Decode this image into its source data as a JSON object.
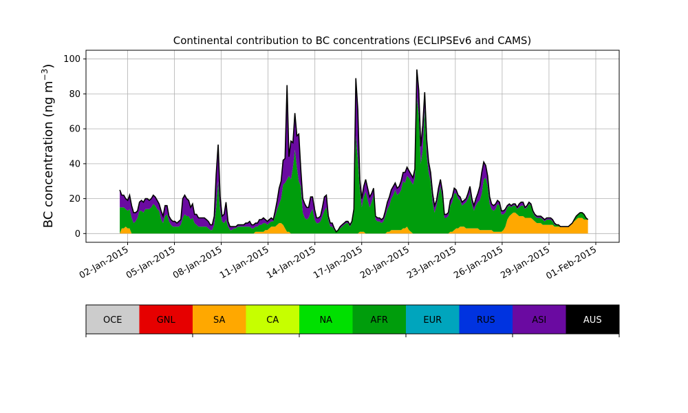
{
  "chart_data": {
    "type": "area",
    "title": "Continental contribution to BC concentrations (ECLIPSEv6 and CAMS)",
    "xlabel": "",
    "ylabel_main": "BC concentration (ng m",
    "ylabel_sup": "−3",
    "ylabel_close": ")",
    "x_start": "2015-01-01T12:00",
    "x_end": "2015-01-31T12:00",
    "xlim_days": [
      "2014-12-30T08:00",
      "2015-02-02T12:00"
    ],
    "ylim": [
      -5,
      105
    ],
    "yticks": [
      0,
      20,
      40,
      60,
      80,
      100
    ],
    "xticks": [
      "02-Jan-2015",
      "05-Jan-2015",
      "08-Jan-2015",
      "11-Jan-2015",
      "14-Jan-2015",
      "17-Jan-2015",
      "20-Jan-2015",
      "23-Jan-2015",
      "26-Jan-2015",
      "29-Jan-2015",
      "01-Feb-2015"
    ],
    "grid": true,
    "series": [
      {
        "name": "SA",
        "color": "#ffa800",
        "values": [
          0,
          3,
          3,
          4,
          3,
          3,
          0,
          0,
          0,
          0,
          0,
          0,
          0,
          0,
          0,
          0,
          0,
          0,
          0,
          0,
          0,
          0,
          0,
          0,
          0,
          0,
          0,
          0,
          0,
          0,
          0,
          0,
          0,
          0,
          0,
          0,
          0,
          0,
          0,
          0,
          0,
          0,
          0,
          0,
          0,
          0,
          0,
          0,
          0,
          0,
          0,
          0,
          0,
          0,
          0,
          0,
          0,
          0,
          0,
          0,
          0,
          0,
          0,
          0,
          0,
          0,
          0,
          0,
          0,
          1,
          1,
          1,
          1,
          1,
          2,
          2,
          3,
          4,
          4,
          4,
          5,
          6,
          6,
          5,
          3,
          1,
          1,
          0,
          0,
          0,
          0,
          0,
          0,
          0,
          0,
          0,
          0,
          0,
          0,
          0,
          0,
          0,
          0,
          0,
          0,
          0,
          0,
          0,
          0,
          0,
          0,
          0,
          0,
          0,
          0,
          0,
          0,
          0,
          0,
          0,
          0,
          0,
          1,
          1,
          1,
          0,
          0,
          0,
          0,
          0,
          0,
          0,
          0,
          0,
          0,
          0,
          1,
          1,
          2,
          2,
          2,
          2,
          2,
          2,
          3,
          3,
          4,
          2,
          1,
          0,
          0,
          0,
          0,
          0,
          0,
          0,
          0,
          0,
          0,
          0,
          0,
          0,
          0,
          0,
          0,
          0,
          0,
          0,
          1,
          1,
          2,
          3,
          3,
          4,
          4,
          4,
          3,
          3,
          3,
          3,
          3,
          3,
          3,
          2,
          2,
          2,
          2,
          2,
          2,
          2,
          1,
          1,
          1,
          1,
          1,
          2,
          4,
          8,
          10,
          11,
          12,
          12,
          11,
          10,
          10,
          10,
          9,
          9,
          9,
          9,
          8,
          7,
          6,
          6,
          6,
          5,
          5,
          5,
          5,
          5,
          5,
          4,
          4,
          4,
          4,
          4,
          4,
          4,
          4,
          5,
          6,
          7,
          8,
          9,
          9,
          9,
          8,
          8,
          8
        ]
      },
      {
        "name": "AFR",
        "color": "#009d0c",
        "values": [
          15,
          12,
          12,
          10,
          10,
          11,
          9,
          6,
          7,
          9,
          13,
          13,
          12,
          14,
          14,
          14,
          15,
          17,
          16,
          14,
          13,
          8,
          6,
          10,
          11,
          7,
          5,
          4,
          4,
          4,
          4,
          5,
          9,
          11,
          10,
          10,
          8,
          9,
          6,
          5,
          4,
          4,
          4,
          4,
          4,
          3,
          2,
          2,
          5,
          15,
          30,
          13,
          7,
          6,
          8,
          4,
          2,
          2,
          3,
          3,
          4,
          4,
          4,
          4,
          4,
          4,
          4,
          3,
          3,
          3,
          3,
          4,
          4,
          5,
          4,
          3,
          3,
          3,
          3,
          6,
          9,
          11,
          14,
          23,
          26,
          30,
          32,
          31,
          38,
          48,
          38,
          30,
          27,
          12,
          9,
          8,
          9,
          12,
          14,
          8,
          6,
          6,
          7,
          10,
          13,
          15,
          8,
          4,
          4,
          2,
          1,
          2,
          3,
          4,
          5,
          6,
          6,
          4,
          6,
          12,
          56,
          43,
          25,
          14,
          20,
          24,
          19,
          15,
          18,
          22,
          8,
          7,
          7,
          6,
          7,
          10,
          13,
          15,
          18,
          20,
          23,
          20,
          21,
          23,
          27,
          26,
          29,
          30,
          29,
          28,
          32,
          78,
          68,
          40,
          48,
          72,
          45,
          35,
          30,
          18,
          12,
          16,
          22,
          27,
          20,
          9,
          9,
          10,
          15,
          17,
          21,
          20,
          17,
          15,
          12,
          13,
          15,
          17,
          20,
          14,
          10,
          13,
          15,
          17,
          21,
          29,
          30,
          25,
          15,
          12,
          12,
          13,
          16,
          15,
          10,
          9,
          8,
          7,
          6,
          4,
          4,
          4,
          3,
          5,
          6,
          6,
          5,
          6,
          8,
          7,
          4,
          3,
          3,
          3,
          3,
          3,
          2,
          3,
          3,
          3,
          2,
          1,
          1,
          1,
          0,
          0,
          0,
          0,
          0,
          0,
          0,
          1,
          2,
          2,
          3,
          3,
          3,
          1,
          0,
          1
        ]
      },
      {
        "name": "ASI",
        "color": "#6a0aa1",
        "values": [
          10,
          7,
          7,
          6,
          6,
          8,
          7,
          6,
          5,
          4,
          5,
          6,
          6,
          6,
          6,
          5,
          5,
          5,
          5,
          5,
          4,
          5,
          4,
          6,
          5,
          3,
          3,
          3,
          3,
          2,
          3,
          3,
          11,
          11,
          10,
          9,
          7,
          8,
          5,
          6,
          5,
          5,
          5,
          5,
          4,
          4,
          3,
          3,
          5,
          19,
          21,
          8,
          3,
          5,
          10,
          3,
          2,
          2,
          1,
          1,
          1,
          1,
          1,
          1,
          2,
          2,
          3,
          2,
          2,
          2,
          2,
          3,
          3,
          3,
          2,
          2,
          2,
          2,
          1,
          3,
          5,
          9,
          10,
          14,
          14,
          54,
          11,
          22,
          14,
          21,
          18,
          27,
          10,
          8,
          8,
          7,
          6,
          9,
          7,
          6,
          3,
          3,
          3,
          5,
          8,
          7,
          2,
          2,
          2,
          1,
          0,
          0,
          1,
          1,
          1,
          1,
          1,
          1,
          1,
          2,
          33,
          28,
          5,
          5,
          6,
          7,
          7,
          6,
          5,
          4,
          2,
          2,
          2,
          2,
          2,
          3,
          4,
          5,
          5,
          5,
          4,
          4,
          4,
          5,
          5,
          6,
          5,
          4,
          4,
          4,
          5,
          16,
          14,
          10,
          14,
          9,
          9,
          6,
          5,
          5,
          4,
          3,
          4,
          4,
          4,
          2,
          2,
          2,
          3,
          3,
          3,
          2,
          2,
          2,
          2,
          2,
          2,
          3,
          4,
          3,
          3,
          4,
          5,
          8,
          12,
          10,
          7,
          6,
          4,
          3,
          3,
          3,
          2,
          2,
          2,
          2,
          2,
          1,
          1,
          1,
          1,
          1,
          1,
          2,
          2,
          2,
          1,
          1,
          1,
          1,
          1,
          1,
          1,
          1,
          1,
          1,
          1,
          1,
          1,
          1,
          1,
          1,
          0,
          0,
          0,
          0,
          0,
          0,
          0,
          0,
          0,
          0,
          0,
          0,
          0,
          0,
          0,
          0,
          0,
          0
        ]
      }
    ]
  },
  "legend": {
    "items": [
      {
        "name": "OCE",
        "color": "#cccccc"
      },
      {
        "name": "GNL",
        "color": "#e60000"
      },
      {
        "name": "SA",
        "color": "#ffa800"
      },
      {
        "name": "CA",
        "color": "#c6ff00"
      },
      {
        "name": "NA",
        "color": "#00e000"
      },
      {
        "name": "AFR",
        "color": "#009d0c"
      },
      {
        "name": "EUR",
        "color": "#00a5bd"
      },
      {
        "name": "RUS",
        "color": "#0033e0"
      },
      {
        "name": "ASI",
        "color": "#6a0aa1"
      },
      {
        "name": "AUS",
        "color": "#000000"
      }
    ],
    "label_colors": {
      "AUS": "#ffffff"
    }
  }
}
